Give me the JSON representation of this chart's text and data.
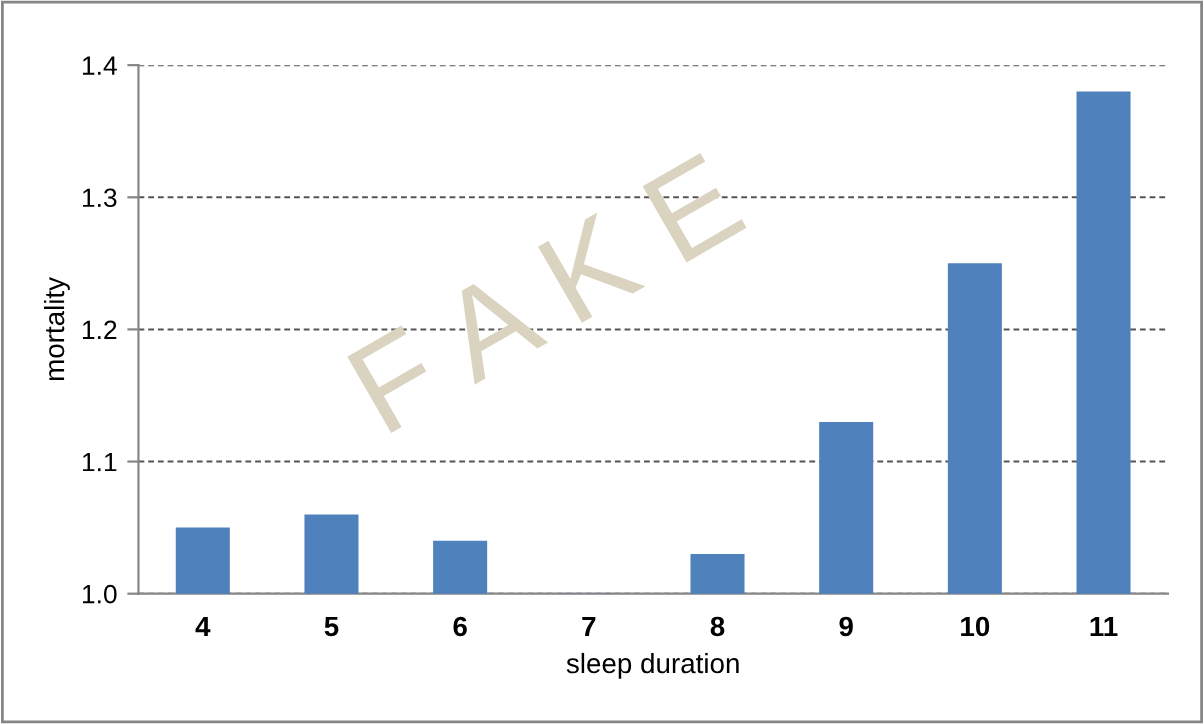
{
  "chart_data": {
    "type": "bar",
    "xlabel": "sleep duration",
    "ylabel": "mortality",
    "categories": [
      "4",
      "5",
      "6",
      "7",
      "8",
      "9",
      "10",
      "11"
    ],
    "values": [
      1.05,
      1.06,
      1.04,
      1.0,
      1.03,
      1.13,
      1.25,
      1.38
    ],
    "color": "#4f81bd",
    "ylim": [
      1.0,
      1.4
    ],
    "yticks": [
      {
        "value": 1.0,
        "label": "1.0"
      },
      1.1,
      1.2,
      1.3,
      1.4
    ],
    "grid": "y",
    "legend": false,
    "annotations": [
      "F A K E"
    ]
  }
}
